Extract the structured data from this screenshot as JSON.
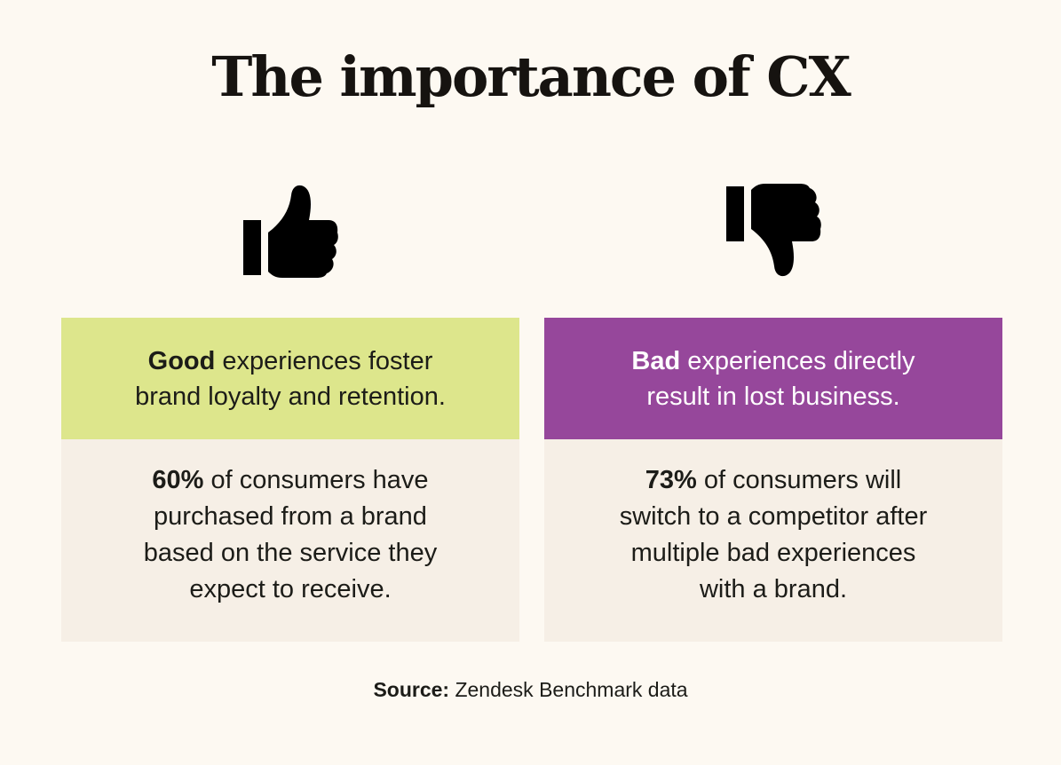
{
  "title": "The importance of CX",
  "icons": {
    "left": "thumbs-up-icon",
    "right": "thumbs-down-icon"
  },
  "colors": {
    "background": "#fdf9f2",
    "good_header": "#dde68c",
    "bad_header": "#96479b",
    "body_panel": "#f6efe6"
  },
  "good": {
    "heading_bold": "Good",
    "heading_line1_rest": " experiences foster",
    "heading_line2": "brand loyalty and retention.",
    "stat_bold": "60%",
    "stat_line1_rest": " of consumers have",
    "stat_line2": "purchased from a brand",
    "stat_line3": "based on the service they",
    "stat_line4": "expect to receive."
  },
  "bad": {
    "heading_bold": "Bad",
    "heading_line1_rest": " experiences directly",
    "heading_line2": "result in lost business.",
    "stat_bold": "73%",
    "stat_line1_rest": " of consumers will",
    "stat_line2": "switch to a competitor after",
    "stat_line3": "multiple bad experiences",
    "stat_line4": "with a brand."
  },
  "source": {
    "label": "Source:",
    "text": " Zendesk Benchmark data"
  }
}
